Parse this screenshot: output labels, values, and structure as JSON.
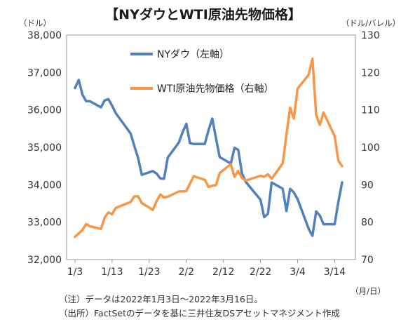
{
  "chart_data": {
    "type": "line",
    "title": "【NYダウとWTI原油先物価格】",
    "y_left_unit": "（ドル）",
    "y_right_unit": "（ドル/バレル）",
    "x_unit": "（月/日）",
    "x_ticks": [
      "1/3",
      "1/13",
      "1/23",
      "2/2",
      "2/12",
      "2/22",
      "3/4",
      "3/14"
    ],
    "y_left_ticks": [
      "38,000",
      "37,000",
      "36,000",
      "35,000",
      "34,000",
      "33,000",
      "32,000"
    ],
    "y_right_ticks": [
      "130",
      "120",
      "110",
      "100",
      "90",
      "80",
      "70"
    ],
    "y_left_range": [
      32000,
      38000
    ],
    "y_right_range": [
      70,
      130
    ],
    "x_range": [
      "2022-01-03",
      "2022-03-16"
    ],
    "legend_placement": "top-left",
    "grid": false,
    "series": [
      {
        "name": "NYダウ（左軸）",
        "axis": "left",
        "color": "#4f81bd",
        "points": [
          [
            "2022-01-03",
            36585
          ],
          [
            "2022-01-04",
            36800
          ],
          [
            "2022-01-05",
            36407
          ],
          [
            "2022-01-06",
            36236
          ],
          [
            "2022-01-07",
            36231
          ],
          [
            "2022-01-10",
            36068
          ],
          [
            "2022-01-11",
            36252
          ],
          [
            "2022-01-12",
            36290
          ],
          [
            "2022-01-13",
            36113
          ],
          [
            "2022-01-14",
            35912
          ],
          [
            "2022-01-18",
            35368
          ],
          [
            "2022-01-19",
            35029
          ],
          [
            "2022-01-20",
            34715
          ],
          [
            "2022-01-21",
            34265
          ],
          [
            "2022-01-24",
            34364
          ],
          [
            "2022-01-25",
            34297
          ],
          [
            "2022-01-26",
            34168
          ],
          [
            "2022-01-27",
            34160
          ],
          [
            "2022-01-28",
            34725
          ],
          [
            "2022-01-31",
            35132
          ],
          [
            "2022-02-01",
            35405
          ],
          [
            "2022-02-02",
            35629
          ],
          [
            "2022-02-03",
            35111
          ],
          [
            "2022-02-04",
            35090
          ],
          [
            "2022-02-07",
            35091
          ],
          [
            "2022-02-08",
            35463
          ],
          [
            "2022-02-09",
            35768
          ],
          [
            "2022-02-10",
            35241
          ],
          [
            "2022-02-11",
            34738
          ],
          [
            "2022-02-14",
            34566
          ],
          [
            "2022-02-15",
            34989
          ],
          [
            "2022-02-16",
            34934
          ],
          [
            "2022-02-17",
            34312
          ],
          [
            "2022-02-18",
            34079
          ],
          [
            "2022-02-22",
            33597
          ],
          [
            "2022-02-23",
            33132
          ],
          [
            "2022-02-24",
            33224
          ],
          [
            "2022-02-25",
            34059
          ],
          [
            "2022-02-28",
            33893
          ],
          [
            "2022-03-01",
            33295
          ],
          [
            "2022-03-02",
            33891
          ],
          [
            "2022-03-03",
            33795
          ],
          [
            "2022-03-04",
            33615
          ],
          [
            "2022-03-07",
            32818
          ],
          [
            "2022-03-08",
            32633
          ],
          [
            "2022-03-09",
            33287
          ],
          [
            "2022-03-10",
            33174
          ],
          [
            "2022-03-11",
            32945
          ],
          [
            "2022-03-14",
            32945
          ],
          [
            "2022-03-15",
            33545
          ],
          [
            "2022-03-16",
            34063
          ]
        ]
      },
      {
        "name": "WTI原油先物価格（右軸）",
        "axis": "right",
        "color": "#f79646",
        "points": [
          [
            "2022-01-03",
            76.1
          ],
          [
            "2022-01-04",
            77.0
          ],
          [
            "2022-01-05",
            77.9
          ],
          [
            "2022-01-06",
            79.5
          ],
          [
            "2022-01-07",
            78.9
          ],
          [
            "2022-01-10",
            78.2
          ],
          [
            "2022-01-11",
            81.2
          ],
          [
            "2022-01-12",
            82.6
          ],
          [
            "2022-01-13",
            82.1
          ],
          [
            "2022-01-14",
            83.8
          ],
          [
            "2022-01-18",
            85.4
          ],
          [
            "2022-01-19",
            86.9
          ],
          [
            "2022-01-20",
            86.9
          ],
          [
            "2022-01-21",
            85.1
          ],
          [
            "2022-01-24",
            83.3
          ],
          [
            "2022-01-25",
            85.6
          ],
          [
            "2022-01-26",
            87.4
          ],
          [
            "2022-01-27",
            86.6
          ],
          [
            "2022-01-28",
            86.8
          ],
          [
            "2022-01-31",
            88.2
          ],
          [
            "2022-02-01",
            88.2
          ],
          [
            "2022-02-02",
            88.3
          ],
          [
            "2022-02-03",
            90.3
          ],
          [
            "2022-02-04",
            92.3
          ],
          [
            "2022-02-07",
            91.3
          ],
          [
            "2022-02-08",
            89.4
          ],
          [
            "2022-02-09",
            89.7
          ],
          [
            "2022-02-10",
            89.9
          ],
          [
            "2022-02-11",
            93.1
          ],
          [
            "2022-02-14",
            95.5
          ],
          [
            "2022-02-15",
            92.1
          ],
          [
            "2022-02-16",
            93.7
          ],
          [
            "2022-02-17",
            91.8
          ],
          [
            "2022-02-18",
            91.1
          ],
          [
            "2022-02-22",
            92.4
          ],
          [
            "2022-02-23",
            92.1
          ],
          [
            "2022-02-24",
            92.8
          ],
          [
            "2022-02-25",
            91.6
          ],
          [
            "2022-02-28",
            95.7
          ],
          [
            "2022-03-01",
            103.4
          ],
          [
            "2022-03-02",
            110.6
          ],
          [
            "2022-03-03",
            107.7
          ],
          [
            "2022-03-04",
            115.7
          ],
          [
            "2022-03-07",
            119.4
          ],
          [
            "2022-03-08",
            123.7
          ],
          [
            "2022-03-09",
            108.7
          ],
          [
            "2022-03-10",
            106.0
          ],
          [
            "2022-03-11",
            109.3
          ],
          [
            "2022-03-14",
            103.0
          ],
          [
            "2022-03-15",
            96.4
          ],
          [
            "2022-03-16",
            95.0
          ]
        ]
      }
    ]
  },
  "notes": [
    "（注）データは2022年1月3日～2022年3月16日。",
    "（出所）FactSetのデータを基に三井住友DSアセットマネジメント作成"
  ]
}
